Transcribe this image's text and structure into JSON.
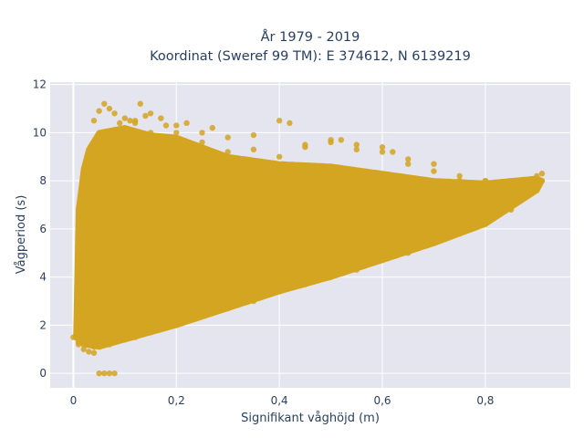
{
  "chart_data": {
    "type": "scatter",
    "title": [
      "År 1979 - 2019",
      "Koordinat (Sweref 99 TM): E 374612, N 6139219"
    ],
    "xlabel": "Signifikant våghöjd (m)",
    "ylabel": "Vågperiod (s)",
    "xlim": [
      -0.045,
      0.965
    ],
    "ylim": [
      -0.6,
      12.1
    ],
    "xticks": [
      0,
      0.2,
      0.4,
      0.6,
      0.8
    ],
    "xtick_labels": [
      "0",
      "0,2",
      "0,4",
      "0,6",
      "0,8"
    ],
    "yticks": [
      0,
      2,
      4,
      6,
      8,
      10,
      12
    ],
    "ytick_labels": [
      "0",
      "2",
      "4",
      "6",
      "8",
      "10",
      "12"
    ],
    "marker_color": "#d4a520",
    "plot_background": "#e5e5ef",
    "grid": true,
    "series": [
      {
        "name": "",
        "x": [
          0.0,
          0.01,
          0.02,
          0.03,
          0.04,
          0.05,
          0.06,
          0.07,
          0.08,
          0.005,
          0.01,
          0.015,
          0.02,
          0.03,
          0.04,
          0.05,
          0.06,
          0.07,
          0.08,
          0.1,
          0.12,
          0.15,
          0.2,
          0.25,
          0.3,
          0.35,
          0.4,
          0.45,
          0.5,
          0.55,
          0.6,
          0.65,
          0.7,
          0.75,
          0.8,
          0.85,
          0.9,
          0.91,
          0.02,
          0.03,
          0.05,
          0.07,
          0.08,
          0.1,
          0.12,
          0.15,
          0.18,
          0.2,
          0.25,
          0.3,
          0.35,
          0.4,
          0.45,
          0.5,
          0.55,
          0.6,
          0.65,
          0.7,
          0.75,
          0.8,
          0.85,
          0.04,
          0.05,
          0.06,
          0.07,
          0.08,
          0.09,
          0.1,
          0.11,
          0.12,
          0.13,
          0.14,
          0.15,
          0.17,
          0.2,
          0.22,
          0.25,
          0.27,
          0.3,
          0.35,
          0.4,
          0.42,
          0.45,
          0.5,
          0.52,
          0.55,
          0.6,
          0.62,
          0.65,
          0.7,
          0.75,
          0.8,
          0.85,
          0.9,
          0.91
        ],
        "y": [
          1.5,
          1.2,
          1.0,
          0.9,
          0.85,
          0.0,
          0.0,
          0.0,
          0.0,
          1.5,
          1.3,
          1.6,
          1.8,
          2.0,
          1.1,
          1.2,
          1.3,
          1.2,
          1.3,
          1.4,
          1.5,
          1.7,
          2.0,
          2.4,
          2.7,
          3.0,
          3.4,
          3.7,
          4.0,
          4.3,
          4.7,
          5.0,
          5.4,
          5.8,
          6.2,
          6.8,
          7.6,
          8.0,
          8.2,
          8.8,
          9.2,
          9.5,
          10.0,
          10.2,
          10.5,
          10.0,
          10.3,
          10.0,
          9.6,
          9.2,
          9.3,
          9.0,
          9.4,
          9.6,
          9.5,
          9.2,
          8.9,
          8.7,
          8.2,
          8.0,
          7.8,
          10.5,
          10.9,
          11.2,
          11.0,
          10.8,
          10.4,
          10.6,
          10.5,
          10.4,
          11.2,
          10.7,
          10.8,
          10.6,
          10.3,
          10.4,
          10.0,
          10.2,
          9.8,
          9.9,
          10.5,
          10.4,
          9.5,
          9.7,
          9.7,
          9.3,
          9.4,
          9.2,
          8.7,
          8.4,
          8.0,
          8.0,
          7.8,
          8.2,
          8.3
        ]
      }
    ]
  }
}
